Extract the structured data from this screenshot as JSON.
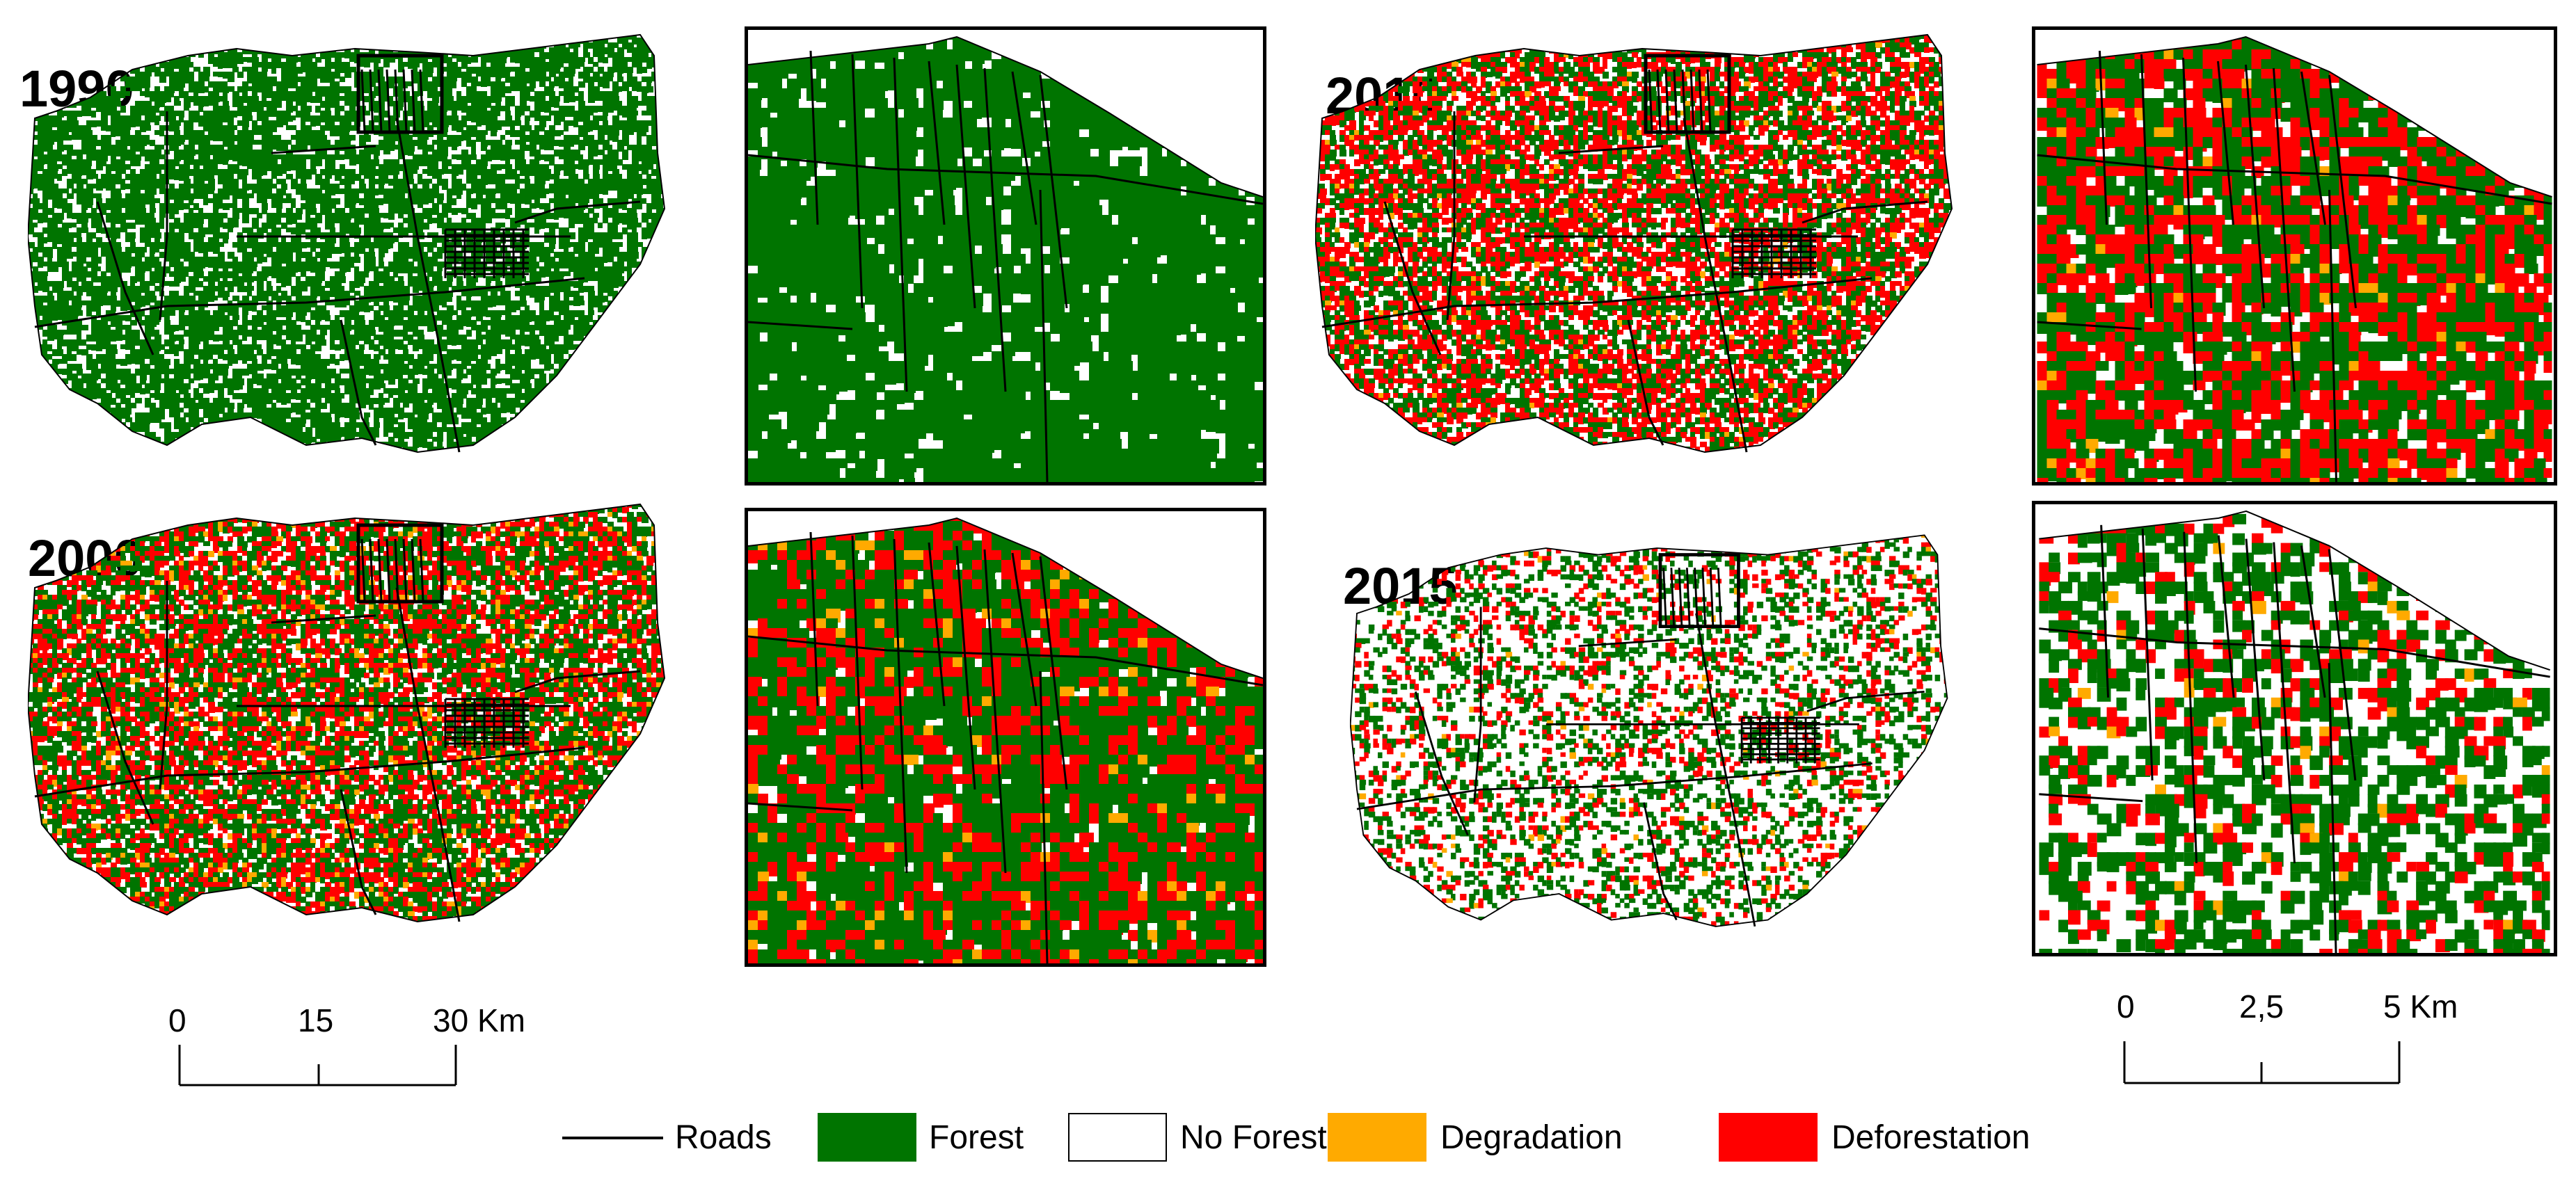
{
  "panels": [
    {
      "year": "1990",
      "forest": 0.72,
      "degradation": 0.0,
      "deforestation": 0.0
    },
    {
      "year": "2000",
      "forest": 0.42,
      "degradation": 0.05,
      "deforestation": 0.32
    },
    {
      "year": "2010",
      "forest": 0.32,
      "degradation": 0.02,
      "deforestation": 0.38
    },
    {
      "year": "2015",
      "forest": 0.22,
      "degradation": 0.01,
      "deforestation": 0.12
    }
  ],
  "scalebar_large": {
    "ticks": [
      "0",
      "15",
      "30 Km"
    ]
  },
  "scalebar_small": {
    "ticks": [
      "0",
      "2,5",
      "5 Km"
    ]
  },
  "legend": {
    "roads": "Roads",
    "forest": "Forest",
    "no_forest": "No Forest",
    "degradation": "Degradation",
    "deforestation": "Deforestation"
  },
  "colors": {
    "forest": "#007400",
    "no_forest": "#ffffff",
    "degradation": "#ffaa00",
    "deforestation": "#ff0000",
    "roads": "#000000"
  }
}
